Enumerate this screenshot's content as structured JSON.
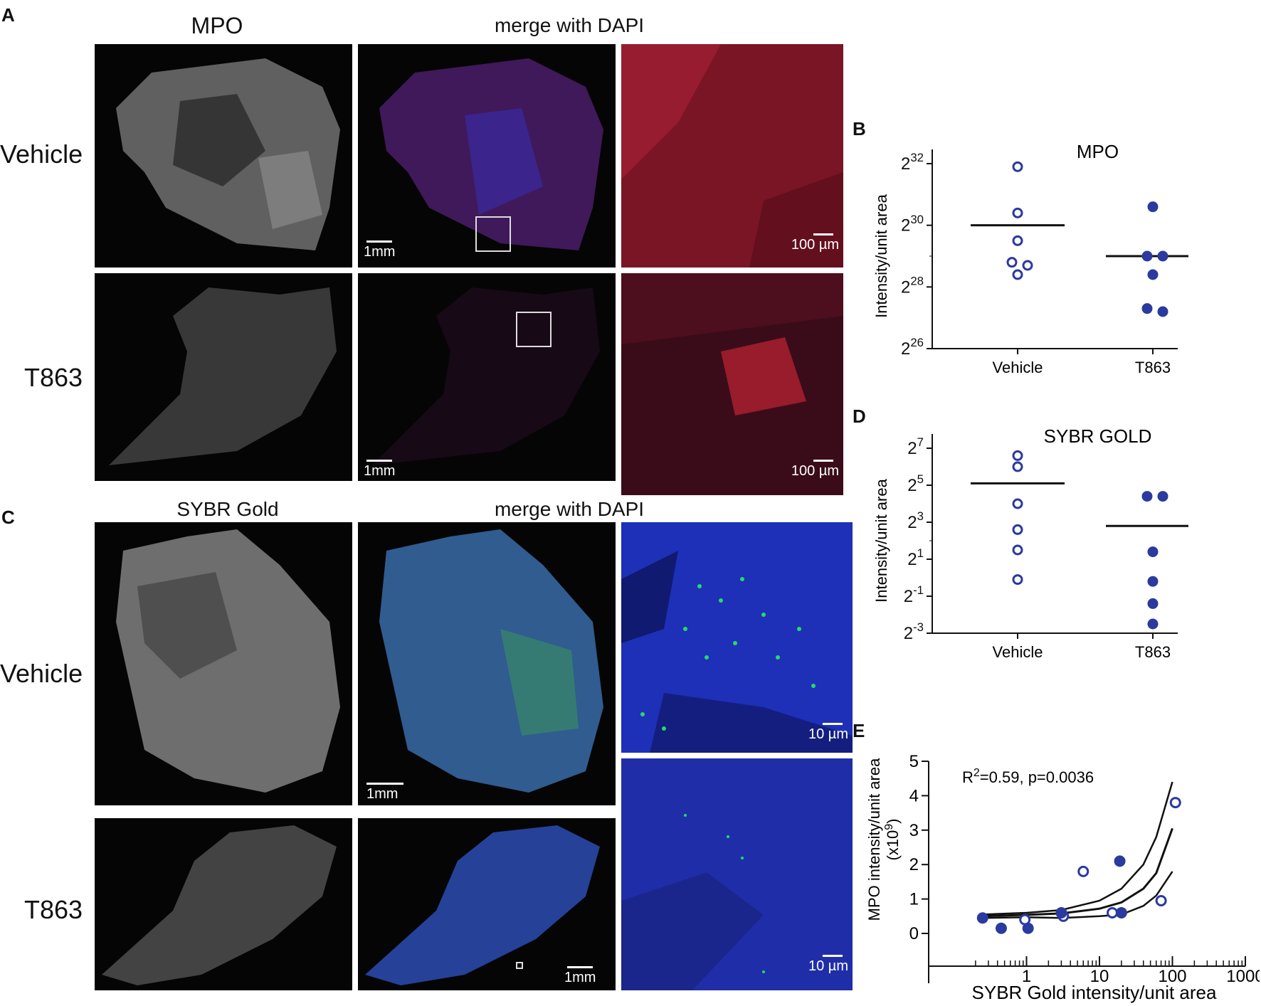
{
  "panel_a": {
    "letter": "A",
    "col_mpo": "MPO",
    "col_merge": "merge with DAPI",
    "row_vehicle": "Vehicle",
    "row_t863": "T863",
    "scale_1mm": "1mm",
    "scale_100um": "100 µm"
  },
  "panel_c": {
    "letter": "C",
    "col_sybr": "SYBR Gold",
    "col_merge": "merge with DAPI",
    "row_vehicle": "Vehicle",
    "row_t863": "T863",
    "scale_1mm": "1mm",
    "scale_10um": "10 µm"
  },
  "colors": {
    "marker": "#2b3a9e",
    "mpo_red": "#c8283c",
    "dapi_blue": "#2233c0",
    "sybr_green": "#22dd66"
  },
  "chart_data": [
    {
      "panel": "B",
      "type": "scatter",
      "title": "MPO",
      "ylabel": "Intensity/unit area",
      "categories": [
        "Vehicle",
        "T863"
      ],
      "y_scale": "log2",
      "ylim_exp": [
        26,
        32
      ],
      "yticks": [
        {
          "base": "2",
          "exp": "32",
          "value": 32
        },
        {
          "base": "2",
          "exp": "30",
          "value": 30
        },
        {
          "base": "2",
          "exp": "28",
          "value": 28
        },
        {
          "base": "2",
          "exp": "26",
          "value": 26
        }
      ],
      "series": [
        {
          "category": "Vehicle",
          "marker": "open",
          "values_exp": [
            31.9,
            30.4,
            29.5,
            28.8,
            28.7,
            28.4
          ],
          "mean_exp": 30.0
        },
        {
          "category": "T863",
          "marker": "filled",
          "values_exp": [
            30.6,
            29.0,
            29.0,
            28.4,
            27.3,
            27.2
          ],
          "mean_exp": 29.0
        }
      ]
    },
    {
      "panel": "D",
      "type": "scatter",
      "title": "SYBR GOLD",
      "ylabel": "Intensity/unit area",
      "categories": [
        "Vehicle",
        "T863"
      ],
      "y_scale": "log2",
      "ylim_exp": [
        -3,
        7
      ],
      "yticks": [
        {
          "base": "2",
          "exp": "7",
          "value": 7
        },
        {
          "base": "2",
          "exp": "5",
          "value": 5
        },
        {
          "base": "2",
          "exp": "3",
          "value": 3
        },
        {
          "base": "2",
          "exp": "1",
          "value": 1
        },
        {
          "base": "2",
          "exp": "-1",
          "value": -1
        },
        {
          "base": "2",
          "exp": "-3",
          "value": -3
        }
      ],
      "series": [
        {
          "category": "Vehicle",
          "marker": "open",
          "values_exp": [
            6.6,
            6.0,
            4.0,
            2.6,
            1.5,
            -0.1
          ],
          "mean_exp": 5.1
        },
        {
          "category": "T863",
          "marker": "filled",
          "values_exp": [
            4.4,
            4.4,
            1.4,
            -0.2,
            -1.4,
            -2.5
          ],
          "mean_exp": 2.8
        }
      ]
    },
    {
      "panel": "E",
      "type": "scatter",
      "annotation": "R2=0.59, p=0.0036",
      "annotation_prefix": "R",
      "annotation_sup": "2",
      "annotation_rest": "=0.59, p=0.0036",
      "xlabel": "SYBR Gold intensity/unit area",
      "ylabel_line1": "MPO intensity/unit area",
      "ylabel_line2_pre": "(x10",
      "ylabel_line2_sup": "9",
      "ylabel_line2_post": ")",
      "x_scale": "log10",
      "xlim": [
        0.1,
        1000
      ],
      "ylim": [
        0,
        5
      ],
      "xticks": [
        {
          "label": "1",
          "value": 1
        },
        {
          "label": "10",
          "value": 10
        },
        {
          "label": "100",
          "value": 100
        },
        {
          "label": "1000",
          "value": 1000
        }
      ],
      "yticks": [
        {
          "label": "0",
          "value": 0
        },
        {
          "label": "1",
          "value": 1
        },
        {
          "label": "2",
          "value": 2
        },
        {
          "label": "3",
          "value": 3
        },
        {
          "label": "4",
          "value": 4
        },
        {
          "label": "5",
          "value": 5
        }
      ],
      "series": [
        {
          "name": "Vehicle",
          "marker": "open",
          "points": [
            [
              0.95,
              0.4
            ],
            [
              3.2,
              0.5
            ],
            [
              6,
              1.8
            ],
            [
              15,
              0.6
            ],
            [
              70,
              0.95
            ],
            [
              110,
              3.8
            ]
          ]
        },
        {
          "name": "T863",
          "marker": "filled",
          "points": [
            [
              0.25,
              0.45
            ],
            [
              0.45,
              0.15
            ],
            [
              1.05,
              0.15
            ],
            [
              3,
              0.6
            ],
            [
              19,
              2.1
            ],
            [
              20,
              0.6
            ]
          ]
        }
      ],
      "fit_curve": {
        "x": [
          0.25,
          1,
          3,
          10,
          20,
          40,
          60,
          100
        ],
        "y": [
          0.5,
          0.54,
          0.58,
          0.72,
          0.9,
          1.3,
          1.75,
          3.05
        ]
      },
      "ci_upper": {
        "x": [
          0.25,
          1,
          3,
          10,
          20,
          40,
          60,
          100
        ],
        "y": [
          0.55,
          0.6,
          0.68,
          0.95,
          1.3,
          2.0,
          2.8,
          4.4
        ]
      },
      "ci_lower": {
        "x": [
          0.25,
          1,
          3,
          10,
          20,
          40,
          60,
          100
        ],
        "y": [
          0.45,
          0.47,
          0.45,
          0.5,
          0.55,
          0.8,
          1.1,
          1.8
        ]
      }
    }
  ]
}
